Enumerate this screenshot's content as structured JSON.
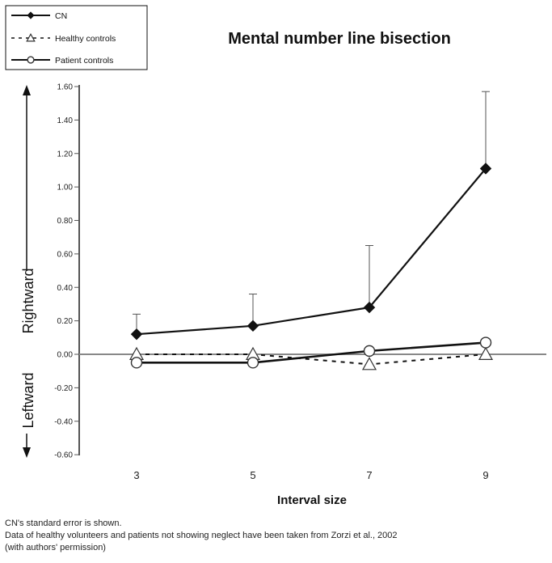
{
  "chart_data": {
    "type": "line",
    "title": "Mental number line bisection",
    "xlabel": "Interval size",
    "ylabel_up": "Rightward",
    "ylabel_down": "Leftward",
    "categories": [
      "3",
      "5",
      "7",
      "9"
    ],
    "yticks": [
      "1.60",
      "1.40",
      "1.20",
      "1.00",
      "0.80",
      "0.60",
      "0.40",
      "0.20",
      "0.00",
      "-0.20",
      "-0.40",
      "-0.60"
    ],
    "ylim": [
      -0.6,
      1.6
    ],
    "grid": false,
    "legend_position": "top-left",
    "series": [
      {
        "name": "CN",
        "values": [
          0.12,
          0.17,
          0.28,
          1.11
        ],
        "error": [
          0.12,
          0.19,
          0.37,
          0.46
        ],
        "marker": "diamond",
        "line": "solid"
      },
      {
        "name": "Healthy controls",
        "values": [
          0.0,
          0.0,
          -0.06,
          0.0
        ],
        "marker": "triangle",
        "line": "dashed"
      },
      {
        "name": "Patient controls",
        "values": [
          -0.05,
          -0.05,
          0.02,
          0.07
        ],
        "marker": "circle",
        "line": "solid"
      }
    ]
  },
  "notes": [
    "CN's standard error is shown.",
    "Data of healthy volunteers and patients not showing neglect have been taken from Zorzi et al., 2002",
    "(with authors' permission)"
  ]
}
